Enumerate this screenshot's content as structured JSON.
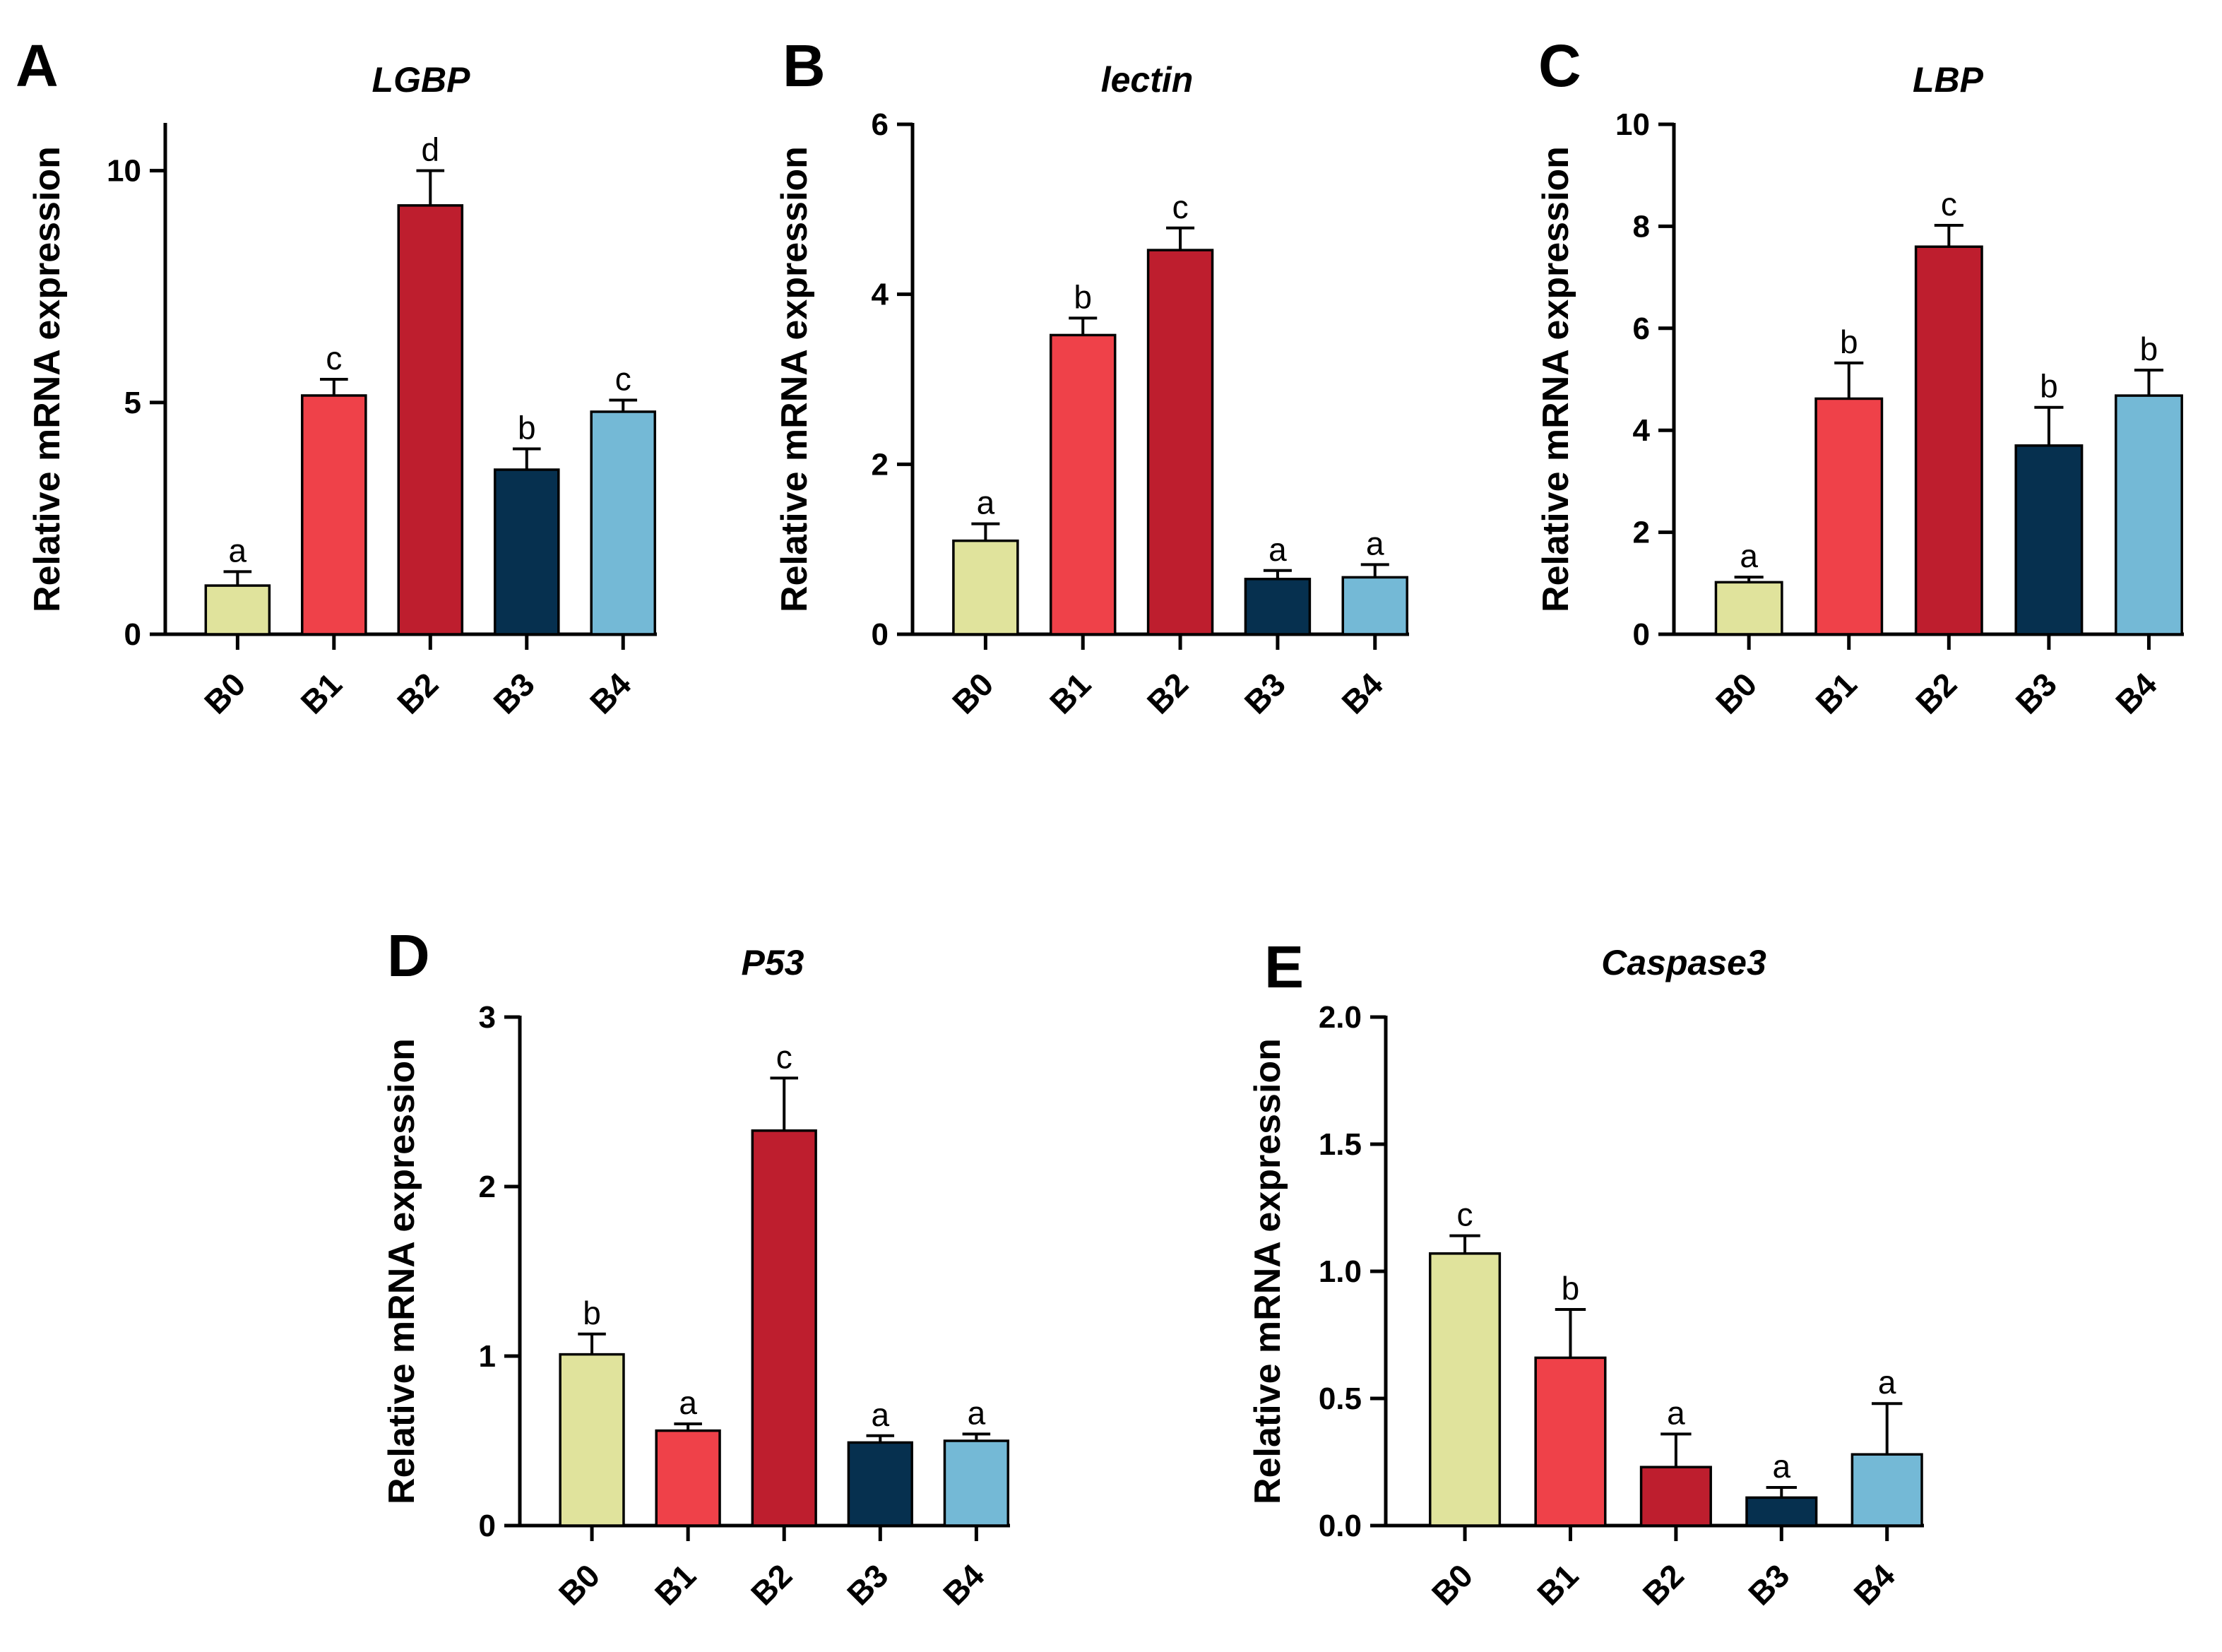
{
  "figure": {
    "category_colors": {
      "B0": "#e0e39c",
      "B1": "#ef4149",
      "B2": "#be1e2e",
      "B3": "#06304f",
      "B4": "#74b9d6"
    }
  },
  "chart_data": [
    {
      "type": "bar",
      "panel": "A",
      "title": "LGBP",
      "ylabel": "Relative mRNA expression",
      "xlabel": "",
      "categories": [
        "B0",
        "B1",
        "B2",
        "B3",
        "B4"
      ],
      "values": [
        1.05,
        5.15,
        9.25,
        3.55,
        4.8
      ],
      "errors": [
        0.3,
        0.35,
        0.75,
        0.45,
        0.25
      ],
      "significance": [
        "a",
        "c",
        "d",
        "b",
        "c"
      ],
      "ylim": [
        0,
        11
      ],
      "yticks": [
        0,
        5,
        10
      ],
      "ytick_labels": [
        "0",
        "5",
        "10"
      ]
    },
    {
      "type": "bar",
      "panel": "B",
      "title": "lectin",
      "ylabel": "Relative mRNA expression",
      "xlabel": "",
      "categories": [
        "B0",
        "B1",
        "B2",
        "B3",
        "B4"
      ],
      "values": [
        1.1,
        3.52,
        4.52,
        0.65,
        0.67
      ],
      "errors": [
        0.2,
        0.2,
        0.26,
        0.1,
        0.15
      ],
      "significance": [
        "a",
        "b",
        "c",
        "a",
        "a"
      ],
      "ylim": [
        0,
        6
      ],
      "yticks": [
        0,
        2,
        4,
        6
      ],
      "ytick_labels": [
        "0",
        "2",
        "4",
        "6"
      ]
    },
    {
      "type": "bar",
      "panel": "C",
      "title": "LBP",
      "ylabel": "Relative mRNA expression",
      "xlabel": "",
      "categories": [
        "B0",
        "B1",
        "B2",
        "B3",
        "B4"
      ],
      "values": [
        1.02,
        4.62,
        7.6,
        3.7,
        4.68
      ],
      "errors": [
        0.1,
        0.7,
        0.42,
        0.75,
        0.5
      ],
      "significance": [
        "a",
        "b",
        "c",
        "b",
        "b"
      ],
      "ylim": [
        0,
        10
      ],
      "yticks": [
        0,
        2,
        4,
        6,
        8,
        10
      ],
      "ytick_labels": [
        "0",
        "2",
        "4",
        "6",
        "8",
        "10"
      ]
    },
    {
      "type": "bar",
      "panel": "D",
      "title": "P53",
      "ylabel": "Relative mRNA expression",
      "xlabel": "",
      "categories": [
        "B0",
        "B1",
        "B2",
        "B3",
        "B4"
      ],
      "values": [
        1.01,
        0.56,
        2.33,
        0.49,
        0.5
      ],
      "errors": [
        0.12,
        0.04,
        0.31,
        0.04,
        0.04
      ],
      "significance": [
        "b",
        "a",
        "c",
        "a",
        "a"
      ],
      "ylim": [
        0,
        3
      ],
      "yticks": [
        0,
        1,
        2,
        3
      ],
      "ytick_labels": [
        "0",
        "1",
        "2",
        "3"
      ]
    },
    {
      "type": "bar",
      "panel": "E",
      "title": "Caspase3",
      "ylabel": "Relative mRNA expression",
      "xlabel": "",
      "categories": [
        "B0",
        "B1",
        "B2",
        "B3",
        "B4"
      ],
      "values": [
        1.07,
        0.66,
        0.23,
        0.11,
        0.28
      ],
      "errors": [
        0.07,
        0.19,
        0.13,
        0.04,
        0.2
      ],
      "significance": [
        "c",
        "b",
        "a",
        "a",
        "a"
      ],
      "ylim": [
        0,
        2.0
      ],
      "yticks": [
        0,
        0.5,
        1.0,
        1.5,
        2.0
      ],
      "ytick_labels": [
        "0.0",
        "0.5",
        "1.0",
        "1.5",
        "2.0"
      ]
    }
  ]
}
